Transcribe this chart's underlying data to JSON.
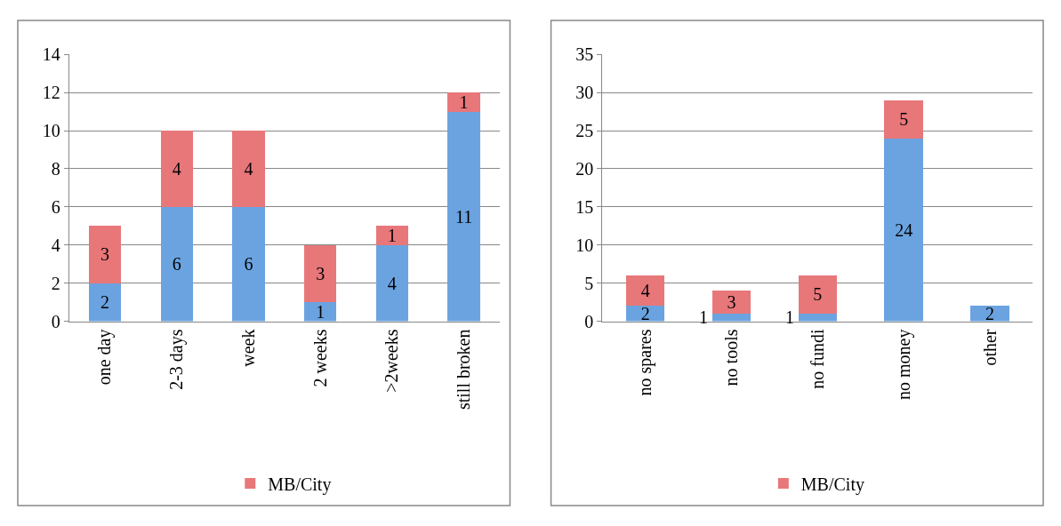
{
  "chart_data": [
    {
      "type": "bar",
      "stacked": true,
      "categories": [
        "one day",
        "2-3 days",
        "week",
        "2 weeks",
        ">2weeks",
        "still broken"
      ],
      "series": [
        {
          "color": "#6ba3e0",
          "values": [
            2,
            6,
            6,
            1,
            4,
            11
          ]
        },
        {
          "name": "MB/City",
          "color": "#e8777a",
          "values": [
            3,
            4,
            4,
            3,
            1,
            1
          ]
        }
      ],
      "ylim": [
        0,
        14
      ],
      "yticks": [
        0,
        2,
        4,
        6,
        8,
        10,
        12,
        14
      ],
      "grid": "y",
      "legend": "bottom",
      "data_labels": true
    },
    {
      "type": "bar",
      "stacked": true,
      "categories": [
        "no spares",
        "no tools",
        "no fundi",
        "no money",
        "other"
      ],
      "series": [
        {
          "color": "#6ba3e0",
          "values": [
            2,
            1,
            1,
            24,
            2
          ]
        },
        {
          "name": "MB/City",
          "color": "#e8777a",
          "values": [
            4,
            3,
            5,
            5,
            null
          ]
        }
      ],
      "ylim": [
        0,
        35
      ],
      "yticks": [
        0,
        5,
        10,
        15,
        20,
        25,
        30,
        35
      ],
      "grid": "y",
      "legend": "bottom",
      "data_labels": true
    }
  ]
}
